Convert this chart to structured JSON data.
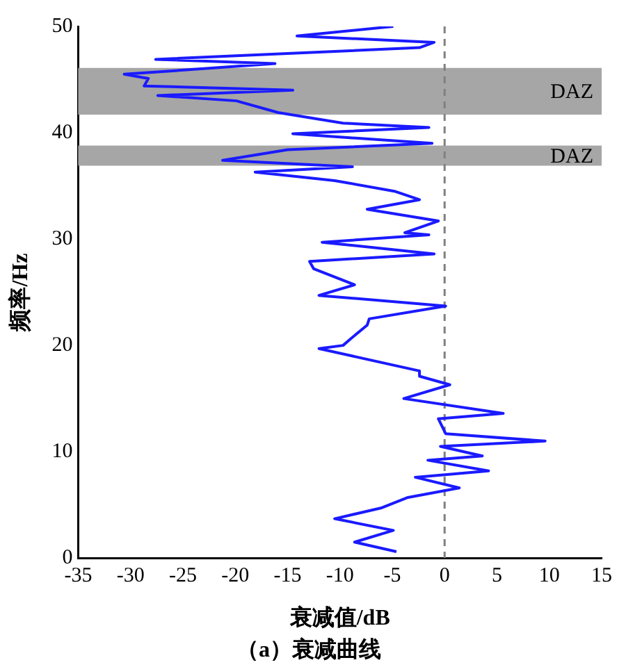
{
  "chart_data": {
    "type": "line",
    "title": "（a）衰减曲线",
    "xlabel": "衰减值/dB",
    "ylabel": "频率/Hz",
    "x": [
      -4.9,
      -14.1,
      -1.0,
      -2.4,
      -27.6,
      -16.2,
      -30.6,
      -28.3,
      -28.7,
      -14.5,
      -27.4,
      -19.9,
      -15.9,
      -9.7,
      -1.5,
      -14.5,
      -1.2,
      -15.0,
      -21.2,
      -8.8,
      -18.1,
      -10.5,
      -4.8,
      -2.4,
      -7.4,
      -0.6,
      -3.8,
      -1.5,
      -11.7,
      -1.0,
      -12.9,
      -12.5,
      -8.6,
      -12.0,
      0.1,
      -7.2,
      -7.4,
      -9.0,
      -9.7,
      -12.0,
      -2.4,
      -2.4,
      0.5,
      -3.9,
      5.6,
      -0.6,
      0.1,
      9.6,
      -0.4,
      3.6,
      -1.6,
      4.2,
      -2.8,
      1.4,
      -3.5,
      -6.1,
      -10.5,
      -4.9,
      -8.6,
      -4.6
    ],
    "series": [
      {
        "color": "#1a1aff",
        "values": [
          50.0,
          49.1,
          48.5,
          48.0,
          46.9,
          46.5,
          45.5,
          45.1,
          44.4,
          44.0,
          43.5,
          43.0,
          41.9,
          40.9,
          40.5,
          39.9,
          39.0,
          38.4,
          37.4,
          36.8,
          36.3,
          35.5,
          34.5,
          33.7,
          32.8,
          31.7,
          30.6,
          30.4,
          29.7,
          28.6,
          27.9,
          27.2,
          25.7,
          24.7,
          23.7,
          22.5,
          21.9,
          20.6,
          20.0,
          19.7,
          17.6,
          17.1,
          16.3,
          15.0,
          13.6,
          13.1,
          11.7,
          11.0,
          10.5,
          9.6,
          9.2,
          8.2,
          7.6,
          6.6,
          5.7,
          4.7,
          3.7,
          2.6,
          1.5,
          0.6
        ]
      }
    ],
    "xlim": [
      -35,
      15
    ],
    "xticks": [
      -35,
      -30,
      -25,
      -20,
      -15,
      -10,
      -5,
      0,
      5,
      10,
      15
    ],
    "ylim": [
      0,
      50
    ],
    "yticks": [
      0,
      10,
      20,
      30,
      40,
      50
    ],
    "grid": false,
    "legend": false,
    "marker": "none",
    "line_style": "solid",
    "bands": [
      {
        "axis": "y",
        "from": 41.7,
        "to": 46.1,
        "label": "DAZ",
        "color": "#a6a6a6"
      },
      {
        "axis": "y",
        "from": 36.9,
        "to": 38.8,
        "label": "DAZ",
        "color": "#a6a6a6"
      }
    ],
    "ref_lines": [
      {
        "axis": "x",
        "value": 0,
        "color": "#808080",
        "line_style": "dashed"
      }
    ]
  }
}
